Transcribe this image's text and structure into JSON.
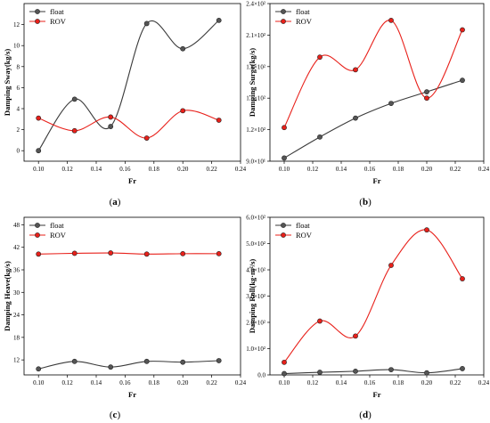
{
  "colors": {
    "float": "#3a3a3a",
    "ROV": "#e8201a",
    "marker_float": "#555555",
    "marker_ROV": "#e8201a"
  },
  "chart_data": [
    {
      "panel": "(a)",
      "type": "line",
      "xlabel": "Fr",
      "ylabel": "Damping Sway(kg/s)",
      "xlim": [
        0.09,
        0.24
      ],
      "ylim": [
        -1,
        14
      ],
      "xticks": [
        "0.10",
        "0.12",
        "0.14",
        "0.16",
        "0.18",
        "0.20",
        "0.22",
        "0.24"
      ],
      "yticks": [
        "0",
        "2",
        "4",
        "6",
        "8",
        "10",
        "12"
      ],
      "legend": "top-left",
      "grid": false,
      "x": [
        0.1,
        0.125,
        0.15,
        0.175,
        0.2,
        0.225
      ],
      "series": [
        {
          "name": "float",
          "values": [
            0,
            4.9,
            2.3,
            12.1,
            9.7,
            12.4
          ]
        },
        {
          "name": "ROV",
          "values": [
            3.1,
            1.9,
            3.2,
            1.2,
            3.8,
            2.9
          ]
        }
      ]
    },
    {
      "panel": "(b)",
      "type": "line",
      "xlabel": "Fr",
      "ylabel": "Damping Surge(kg/s)",
      "xlim": [
        0.09,
        0.24
      ],
      "ylim": [
        90,
        240
      ],
      "xticks": [
        "0.10",
        "0.12",
        "0.14",
        "0.16",
        "0.18",
        "0.20",
        "0.22",
        "0.24"
      ],
      "yticks": [
        "9.0×10¹",
        "1.2×10²",
        "1.5×10²",
        "1.8×10²",
        "2.1×10²",
        "2.4×10²"
      ],
      "legend": "top-left",
      "grid": false,
      "x": [
        0.1,
        0.125,
        0.15,
        0.175,
        0.2,
        0.225
      ],
      "series": [
        {
          "name": "float",
          "values": [
            93,
            113,
            131,
            145,
            156,
            167
          ]
        },
        {
          "name": "ROV",
          "values": [
            122,
            189,
            177,
            224,
            150,
            215
          ]
        }
      ]
    },
    {
      "panel": "(c)",
      "type": "line",
      "xlabel": "Fr",
      "ylabel": "Damping Heave(kg/s)",
      "xlim": [
        0.09,
        0.24
      ],
      "ylim": [
        8,
        50
      ],
      "xticks": [
        "0.10",
        "0.12",
        "0.14",
        "0.16",
        "0.18",
        "0.20",
        "0.22",
        "0.24"
      ],
      "yticks": [
        "12",
        "18",
        "24",
        "30",
        "36",
        "42",
        "48"
      ],
      "legend": "top-left",
      "grid": false,
      "x": [
        0.1,
        0.125,
        0.15,
        0.175,
        0.2,
        0.225
      ],
      "series": [
        {
          "name": "float",
          "values": [
            9.6,
            11.6,
            10.1,
            11.6,
            11.4,
            11.8
          ]
        },
        {
          "name": "ROV",
          "values": [
            40.2,
            40.4,
            40.5,
            40.2,
            40.3,
            40.3
          ]
        }
      ]
    },
    {
      "panel": "(d)",
      "type": "line",
      "xlabel": "Fr",
      "ylabel": "Damping Roll(kg·m²/s)",
      "xlim": [
        0.09,
        0.24
      ],
      "ylim": [
        0,
        600
      ],
      "xticks": [
        "0.10",
        "0.12",
        "0.14",
        "0.16",
        "0.18",
        "0.20",
        "0.22",
        "0.24"
      ],
      "yticks": [
        "0.0",
        "1.0×10²",
        "2.0×10²",
        "3.0×10²",
        "4.0×10²",
        "5.0×10²",
        "6.0×10²"
      ],
      "legend": "top-left",
      "grid": false,
      "x": [
        0.1,
        0.125,
        0.15,
        0.175,
        0.2,
        0.225
      ],
      "series": [
        {
          "name": "float",
          "values": [
            5,
            10,
            14,
            20,
            8,
            24
          ]
        },
        {
          "name": "ROV",
          "values": [
            48,
            205,
            148,
            417,
            552,
            366
          ]
        }
      ]
    }
  ]
}
